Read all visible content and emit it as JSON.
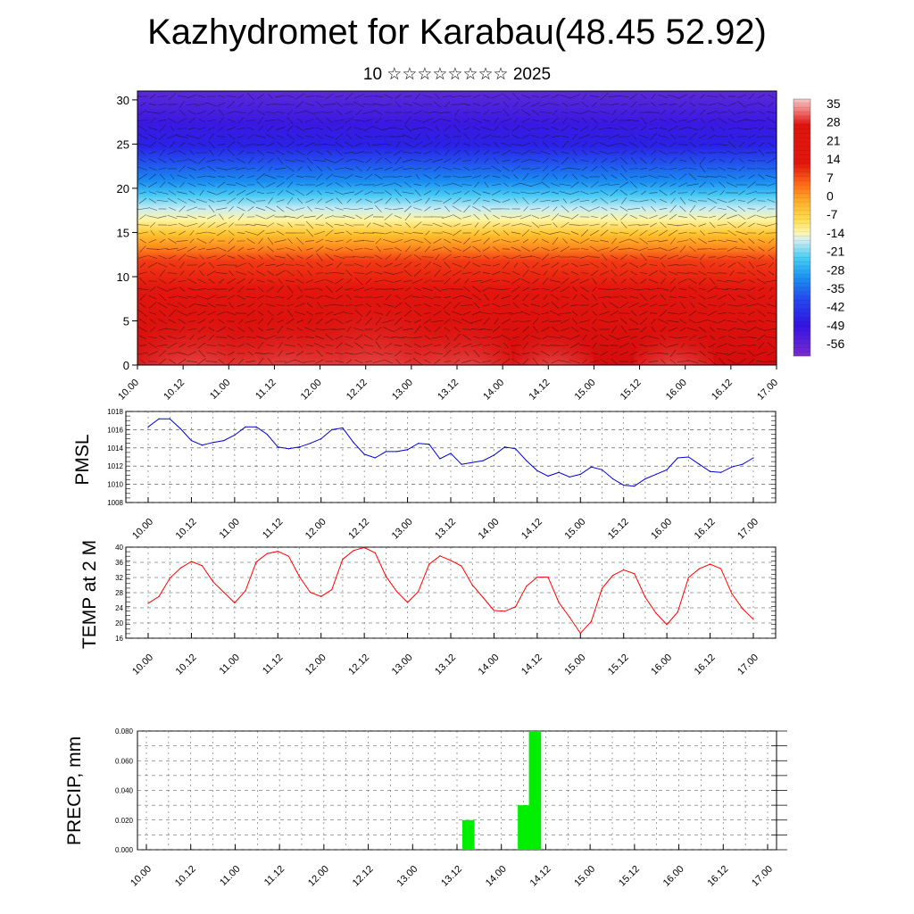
{
  "title": "Kazhydromet for Karabau(48.45 52.92)",
  "subtitle": "10 ☆☆☆☆☆☆☆☆ 2025",
  "time_labels": [
    "10.00",
    "10.12",
    "11.00",
    "11.12",
    "12.00",
    "12.12",
    "13.00",
    "13.12",
    "14.00",
    "14.12",
    "15.00",
    "15.12",
    "16.00",
    "16.12",
    "17.00"
  ],
  "chart_data": [
    {
      "type": "heatmap",
      "title": "",
      "x_categories": [
        "10.00",
        "10.12",
        "11.00",
        "11.12",
        "12.00",
        "12.12",
        "13.00",
        "13.12",
        "14.00",
        "14.12",
        "15.00",
        "15.12",
        "16.00",
        "16.12",
        "17.00"
      ],
      "yticks": [
        0,
        5,
        10,
        15,
        20,
        25,
        30
      ],
      "ylim": [
        0,
        31
      ],
      "colorbar_labels": [
        "35",
        "28",
        "21",
        "14",
        "7",
        "0",
        "-7",
        "-14",
        "-21",
        "-28",
        "-35",
        "-42",
        "-49",
        "-56"
      ],
      "colorbar_values": [
        35,
        28,
        21,
        14,
        7,
        0,
        -7,
        -14,
        -21,
        -28,
        -35,
        -42,
        -49,
        -56
      ],
      "colormap": [
        "#7a2bd1",
        "#3512e0",
        "#2346f0",
        "#1a8ff2",
        "#44cdf5",
        "#c8ecf2",
        "#fff6a6",
        "#ffd340",
        "#ff9a1e",
        "#ff5514",
        "#e8150e",
        "#d70f0e",
        "#f26a6a",
        "#f6c4c4"
      ],
      "vectors": "wind arrows"
    },
    {
      "type": "line",
      "ylabel": "PMSL",
      "ylim": [
        1008,
        1018
      ],
      "yticks": [
        1008,
        1010,
        1012,
        1014,
        1016,
        1018
      ],
      "color": "#0000d0",
      "x": [
        0,
        3,
        6,
        9,
        12,
        15,
        18,
        21,
        24,
        27,
        30,
        33,
        36,
        39,
        42,
        45,
        48,
        51,
        54,
        57,
        60,
        63,
        66,
        69,
        72,
        75,
        78,
        81,
        84,
        87,
        90,
        93,
        96,
        99,
        102,
        105,
        108,
        111,
        114,
        117,
        120,
        123,
        126,
        129,
        132,
        135,
        138,
        141,
        144,
        147,
        150,
        153,
        156,
        159,
        162,
        165,
        168
      ],
      "values": [
        1016.3,
        1017.2,
        1017.2,
        1016.1,
        1014.8,
        1014.3,
        1014.6,
        1014.8,
        1015.4,
        1016.3,
        1016.3,
        1015.5,
        1014.1,
        1013.9,
        1014.1,
        1014.5,
        1015.0,
        1016.0,
        1016.2,
        1014.6,
        1013.3,
        1012.9,
        1013.6,
        1013.6,
        1013.8,
        1014.5,
        1014.4,
        1012.8,
        1013.4,
        1012.2,
        1012.4,
        1012.6,
        1013.2,
        1014.1,
        1013.9,
        1012.6,
        1011.5,
        1010.9,
        1011.3,
        1010.8,
        1011.1,
        1011.9,
        1011.6,
        1010.6,
        1009.9,
        1009.8,
        1010.6,
        1011.1,
        1011.6,
        1012.9,
        1013.0,
        1012.2,
        1011.4,
        1011.3,
        1011.9,
        1012.2,
        1012.9
      ]
    },
    {
      "type": "line",
      "ylabel": "TEMP at 2 M",
      "ylim": [
        16,
        40
      ],
      "yticks": [
        16,
        20,
        24,
        28,
        32,
        36,
        40
      ],
      "color": "#ff0000",
      "x": [
        0,
        3,
        6,
        9,
        12,
        15,
        18,
        21,
        24,
        27,
        30,
        33,
        36,
        39,
        42,
        45,
        48,
        51,
        54,
        57,
        60,
        63,
        66,
        69,
        72,
        75,
        78,
        81,
        84,
        87,
        90,
        93,
        96,
        99,
        102,
        105,
        108,
        111,
        114,
        117,
        120,
        123,
        126,
        129,
        132,
        135,
        138,
        141,
        144,
        147,
        150,
        153,
        156,
        159,
        162,
        165,
        168
      ],
      "values": [
        25.2,
        27.0,
        31.8,
        34.5,
        36.2,
        35.1,
        30.9,
        28.1,
        25.3,
        28.5,
        36.1,
        38.3,
        38.9,
        37.6,
        32.2,
        28.1,
        27.0,
        28.8,
        36.8,
        39.1,
        39.9,
        38.5,
        32.3,
        28.3,
        25.4,
        28.3,
        35.5,
        37.7,
        36.5,
        35.0,
        30.0,
        26.7,
        23.3,
        23.1,
        24.3,
        29.7,
        32.1,
        32.1,
        25.4,
        21.5,
        17.3,
        20.4,
        29.1,
        32.6,
        34.0,
        33.0,
        26.8,
        22.6,
        19.6,
        22.9,
        32.0,
        34.3,
        35.5,
        34.3,
        27.8,
        23.8,
        21.0
      ]
    },
    {
      "type": "bar",
      "ylabel": "PRECIP, mm",
      "ylim": [
        0,
        0.08
      ],
      "yticks": [
        "0.000",
        "0.020",
        "0.040",
        "0.060",
        "0.080"
      ],
      "color": "#00ee00",
      "x": [
        84,
        99,
        102
      ],
      "values": [
        0.02,
        0.03,
        0.08
      ]
    }
  ]
}
